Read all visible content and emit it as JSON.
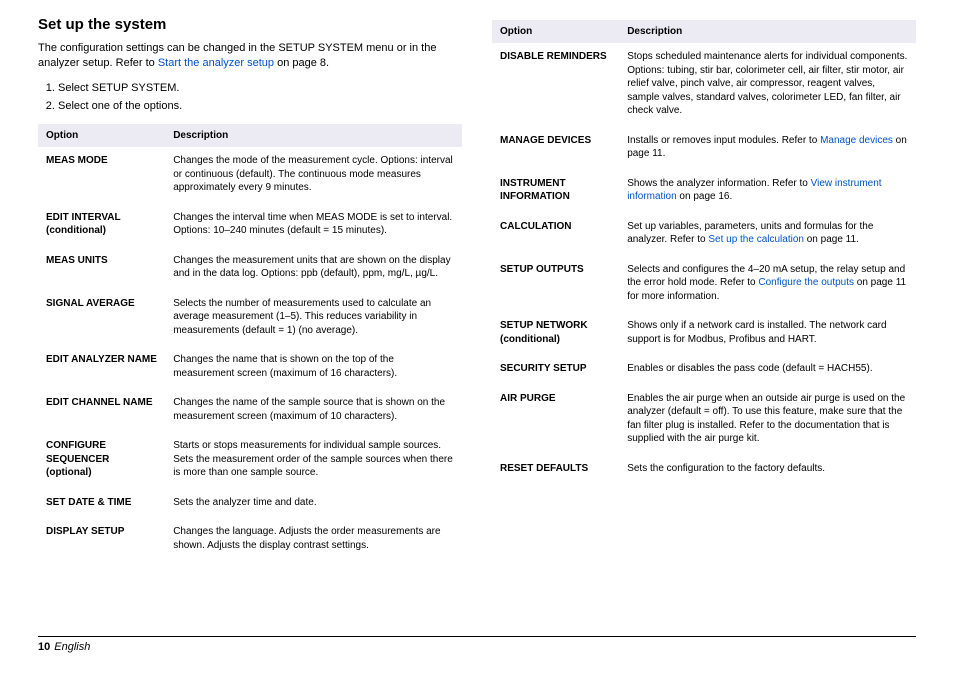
{
  "heading": "Set up the system",
  "intro_pre": "The configuration settings can be changed in the SETUP SYSTEM menu or in the analyzer setup. Refer to ",
  "intro_link": "Start the analyzer setup",
  "intro_post": " on page 8.",
  "steps": [
    "Select SETUP SYSTEM.",
    "Select one of the options."
  ],
  "th_option": "Option",
  "th_desc": "Description",
  "left_rows": [
    {
      "opt": "MEAS MODE",
      "desc": "Changes the mode of the measurement cycle. Options: interval or continuous (default). The continuous mode measures approximately every 9 minutes."
    },
    {
      "opt": "EDIT INTERVAL (conditional)",
      "desc": "Changes the interval time when MEAS MODE is set to interval. Options: 10–240 minutes (default = 15 minutes)."
    },
    {
      "opt": "MEAS UNITS",
      "desc": "Changes the measurement units that are shown on the display and in the data log. Options: ppb (default), ppm, mg/L, µg/L."
    },
    {
      "opt": "SIGNAL AVERAGE",
      "desc": "Selects the number of measurements used to calculate an average measurement (1–5). This reduces variability in measurements (default = 1) (no average)."
    },
    {
      "opt": "EDIT ANALYZER NAME",
      "desc": "Changes the name that is shown on the top of the measurement screen (maximum of 16 characters)."
    },
    {
      "opt": "EDIT CHANNEL NAME",
      "desc": "Changes the name of the sample source that is shown on the measurement screen (maximum of 10 characters)."
    },
    {
      "opt": "CONFIGURE SEQUENCER (optional)",
      "desc": "Starts or stops measurements for individual sample sources. Sets the measurement order of the sample sources when there is more than one sample source."
    },
    {
      "opt": "SET DATE & TIME",
      "desc": "Sets the analyzer time and date."
    },
    {
      "opt": "DISPLAY SETUP",
      "desc": "Changes the language. Adjusts the order measurements are shown. Adjusts the display contrast settings."
    }
  ],
  "right_rows": [
    {
      "opt": "DISABLE REMINDERS",
      "pre": "Stops scheduled maintenance alerts for individual components. Options: tubing, stir bar, colorimeter cell, air filter, stir motor, air relief valve, pinch valve, air compressor, reagent valves, sample valves, standard valves, colorimeter LED, fan filter, air check valve.",
      "link": "",
      "post": ""
    },
    {
      "opt": "MANAGE DEVICES",
      "pre": "Installs or removes input modules. Refer to ",
      "link": "Manage devices",
      "post": " on page 11."
    },
    {
      "opt": "INSTRUMENT INFORMATION",
      "pre": "Shows the analyzer information. Refer to ",
      "link": "View instrument information",
      "post": " on page 16."
    },
    {
      "opt": "CALCULATION",
      "pre": "Set up variables, parameters, units and formulas for the analyzer. Refer to ",
      "link": "Set up the calculation",
      "post": " on page 11."
    },
    {
      "opt": "SETUP OUTPUTS",
      "pre": "Selects and configures the 4–20 mA setup, the relay setup and the error hold mode. Refer to ",
      "link": "Configure the outputs",
      "post": " on page 11 for more information."
    },
    {
      "opt": "SETUP NETWORK (conditional)",
      "pre": "Shows only if a network card is installed. The network card support is for Modbus, Profibus and HART.",
      "link": "",
      "post": ""
    },
    {
      "opt": "SECURITY SETUP",
      "pre": "Enables or disables the pass code (default = HACH55).",
      "link": "",
      "post": ""
    },
    {
      "opt": "AIR PURGE",
      "pre": "Enables the air purge when an outside air purge is used on the analyzer (default = off). To use this feature, make sure that the fan filter plug is installed. Refer to the documentation that is supplied with the air purge kit.",
      "link": "",
      "post": ""
    },
    {
      "opt": "RESET DEFAULTS",
      "pre": "Sets the configuration to the factory defaults.",
      "link": "",
      "post": ""
    }
  ],
  "page_number": "10",
  "page_lang": "English"
}
